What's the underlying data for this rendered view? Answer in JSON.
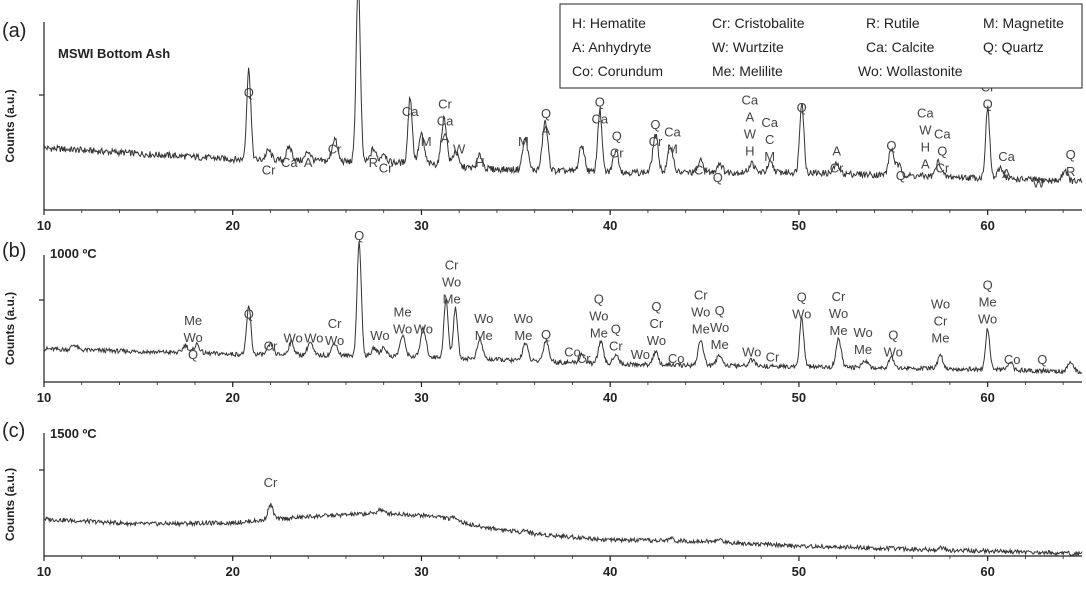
{
  "chart_data": [
    {
      "type": "line",
      "panel": "(a)",
      "title": "MSWI Bottom Ash",
      "xlabel": "",
      "ylabel": "Counts (a.u.)",
      "xlim": [
        10,
        65
      ],
      "xticks": [
        10,
        20,
        30,
        40,
        50,
        60
      ],
      "legend": [
        "H: Hematite",
        "Cr: Cristobalite",
        "R: Rutile",
        "M: Magnetite",
        "A: Anhydryte",
        "W: Wurtzite",
        "Ca: Calcite",
        "Q: Quartz",
        "Co:  Corundum",
        "Me: Melilite",
        "Wo: Wollastonite"
      ],
      "legend_position": "top-right",
      "baseline": [
        [
          10,
          0.33
        ],
        [
          20,
          0.27
        ],
        [
          25,
          0.26
        ],
        [
          30,
          0.25
        ],
        [
          33,
          0.22
        ],
        [
          40,
          0.2
        ],
        [
          50,
          0.2
        ],
        [
          60,
          0.17
        ],
        [
          65,
          0.15
        ]
      ],
      "peaks": [
        [
          20.85,
          0.48
        ],
        [
          21.9,
          0.05
        ],
        [
          23.0,
          0.07
        ],
        [
          24.0,
          0.05
        ],
        [
          25.4,
          0.12
        ],
        [
          26.65,
          0.96
        ],
        [
          27.45,
          0.07
        ],
        [
          28.0,
          0.05
        ],
        [
          29.4,
          0.35
        ],
        [
          30.0,
          0.15
        ],
        [
          31.2,
          0.25
        ],
        [
          31.8,
          0.08
        ],
        [
          33.1,
          0.07
        ],
        [
          35.5,
          0.17
        ],
        [
          36.55,
          0.26
        ],
        [
          38.5,
          0.14
        ],
        [
          39.45,
          0.33
        ],
        [
          40.3,
          0.12
        ],
        [
          42.4,
          0.2
        ],
        [
          43.2,
          0.14
        ],
        [
          44.8,
          0.06
        ],
        [
          45.8,
          0.05
        ],
        [
          47.5,
          0.05
        ],
        [
          48.5,
          0.05
        ],
        [
          50.15,
          0.38
        ],
        [
          52.0,
          0.05
        ],
        [
          54.9,
          0.14
        ],
        [
          55.3,
          0.05
        ],
        [
          57.4,
          0.08
        ],
        [
          60.0,
          0.37
        ],
        [
          60.7,
          0.06
        ],
        [
          64.1,
          0.06
        ]
      ],
      "annotations": [
        {
          "x": 20.85,
          "y": 0.6,
          "labels": [
            "Q"
          ]
        },
        {
          "x": 21.9,
          "y": 0.19,
          "labels": [
            "Cr"
          ]
        },
        {
          "x": 23.0,
          "y": 0.23,
          "labels": [
            "Ca"
          ]
        },
        {
          "x": 24.0,
          "y": 0.23,
          "labels": [
            "A"
          ]
        },
        {
          "x": 25.4,
          "y": 0.3,
          "labels": [
            "Cr"
          ]
        },
        {
          "x": 26.65,
          "y": 1.24,
          "labels": [
            "Q"
          ]
        },
        {
          "x": 27.45,
          "y": 0.23,
          "labels": [
            "R"
          ]
        },
        {
          "x": 28.1,
          "y": 0.2,
          "labels": [
            "Cr"
          ]
        },
        {
          "x": 29.4,
          "y": 0.5,
          "labels": [
            "Ca"
          ]
        },
        {
          "x": 30.25,
          "y": 0.34,
          "labels": [
            "M"
          ]
        },
        {
          "x": 31.25,
          "y": 0.36,
          "labels": [
            "Cr",
            "Ca",
            "A"
          ]
        },
        {
          "x": 32.0,
          "y": 0.3,
          "labels": [
            "W"
          ]
        },
        {
          "x": 33.1,
          "y": 0.23,
          "labels": [
            "H"
          ]
        },
        {
          "x": 35.4,
          "y": 0.34,
          "labels": [
            "M"
          ]
        },
        {
          "x": 36.6,
          "y": 0.4,
          "labels": [
            "Q",
            "A"
          ]
        },
        {
          "x": 39.45,
          "y": 0.46,
          "labels": [
            "Q",
            "Ca"
          ]
        },
        {
          "x": 40.35,
          "y": 0.28,
          "labels": [
            "Q",
            "Cr"
          ]
        },
        {
          "x": 42.4,
          "y": 0.34,
          "labels": [
            "Q",
            "Cr"
          ]
        },
        {
          "x": 43.3,
          "y": 0.3,
          "labels": [
            "Ca",
            "M"
          ]
        },
        {
          "x": 44.8,
          "y": 0.19,
          "labels": [
            "Cr"
          ]
        },
        {
          "x": 45.7,
          "y": 0.15,
          "labels": [
            "Q"
          ]
        },
        {
          "x": 47.4,
          "y": 0.29,
          "labels": [
            "Ca",
            "A",
            "W",
            "H"
          ]
        },
        {
          "x": 48.45,
          "y": 0.26,
          "labels": [
            "Ca",
            "C",
            "M"
          ]
        },
        {
          "x": 50.15,
          "y": 0.52,
          "labels": [
            "Q"
          ]
        },
        {
          "x": 52.0,
          "y": 0.2,
          "labels": [
            "A",
            "Cr"
          ]
        },
        {
          "x": 54.9,
          "y": 0.32,
          "labels": [
            "Q"
          ]
        },
        {
          "x": 55.4,
          "y": 0.16,
          "labels": [
            "Q"
          ]
        },
        {
          "x": 56.7,
          "y": 0.22,
          "labels": [
            "Ca",
            "W",
            "H",
            "A"
          ]
        },
        {
          "x": 57.6,
          "y": 0.2,
          "labels": [
            "Ca",
            "Q",
            "Cr"
          ]
        },
        {
          "x": 60.0,
          "y": 0.54,
          "labels": [
            "Cr",
            "Q"
          ]
        },
        {
          "x": 61.0,
          "y": 0.17,
          "labels": [
            "Ca",
            "A"
          ]
        },
        {
          "x": 62.7,
          "y": 0.12,
          "labels": [
            "W"
          ]
        },
        {
          "x": 64.4,
          "y": 0.18,
          "labels": [
            "Q",
            "R"
          ]
        }
      ]
    },
    {
      "type": "line",
      "panel": "(b)",
      "title": "1000 ºC",
      "xlabel": "",
      "ylabel": "Counts (a.u.)",
      "xlim": [
        10,
        65
      ],
      "xticks": [
        10,
        20,
        30,
        40,
        50,
        60
      ],
      "baseline": [
        [
          10,
          0.26
        ],
        [
          20,
          0.22
        ],
        [
          30,
          0.2
        ],
        [
          40,
          0.14
        ],
        [
          50,
          0.12
        ],
        [
          60,
          0.1
        ],
        [
          65,
          0.08
        ]
      ],
      "peaks": [
        [
          11.6,
          0.04
        ],
        [
          17.5,
          0.06
        ],
        [
          18.1,
          0.07
        ],
        [
          20.85,
          0.38
        ],
        [
          22.0,
          0.08
        ],
        [
          23.1,
          0.1
        ],
        [
          24.1,
          0.1
        ],
        [
          25.4,
          0.1
        ],
        [
          26.7,
          0.9
        ],
        [
          27.5,
          0.06
        ],
        [
          28.0,
          0.07
        ],
        [
          29.0,
          0.16
        ],
        [
          30.1,
          0.22
        ],
        [
          31.3,
          0.46
        ],
        [
          31.8,
          0.4
        ],
        [
          33.1,
          0.15
        ],
        [
          35.5,
          0.14
        ],
        [
          36.6,
          0.17
        ],
        [
          38.5,
          0.07
        ],
        [
          39.5,
          0.17
        ],
        [
          40.3,
          0.08
        ],
        [
          42.4,
          0.1
        ],
        [
          44.8,
          0.2
        ],
        [
          45.8,
          0.09
        ],
        [
          47.5,
          0.05
        ],
        [
          50.15,
          0.38
        ],
        [
          52.1,
          0.22
        ],
        [
          53.5,
          0.06
        ],
        [
          54.9,
          0.09
        ],
        [
          57.5,
          0.1
        ],
        [
          60.0,
          0.32
        ],
        [
          61.2,
          0.05
        ],
        [
          64.4,
          0.07
        ]
      ],
      "annotations": [
        {
          "x": 17.9,
          "y": 0.18,
          "labels": [
            "Me",
            "Wo",
            "Q"
          ]
        },
        {
          "x": 20.85,
          "y": 0.5,
          "labels": [
            "Q"
          ]
        },
        {
          "x": 22.0,
          "y": 0.25,
          "labels": [
            "Cr"
          ]
        },
        {
          "x": 23.2,
          "y": 0.31,
          "labels": [
            "Wo"
          ]
        },
        {
          "x": 24.3,
          "y": 0.31,
          "labels": [
            "Wo"
          ]
        },
        {
          "x": 25.4,
          "y": 0.29,
          "labels": [
            "Cr",
            "Wo"
          ]
        },
        {
          "x": 26.7,
          "y": 1.12,
          "labels": [
            "Q"
          ]
        },
        {
          "x": 27.8,
          "y": 0.33,
          "labels": [
            "Wo"
          ]
        },
        {
          "x": 29.0,
          "y": 0.38,
          "labels": [
            "Me",
            "Wo"
          ]
        },
        {
          "x": 30.1,
          "y": 0.38,
          "labels": [
            "Wo"
          ]
        },
        {
          "x": 31.6,
          "y": 0.62,
          "labels": [
            "Cr",
            "Wo",
            "Me"
          ]
        },
        {
          "x": 33.3,
          "y": 0.33,
          "labels": [
            "Wo",
            "Me"
          ]
        },
        {
          "x": 35.4,
          "y": 0.33,
          "labels": [
            "Wo",
            "Me"
          ]
        },
        {
          "x": 36.6,
          "y": 0.34,
          "labels": [
            "Q"
          ]
        },
        {
          "x": 38.0,
          "y": 0.2,
          "labels": [
            "Co"
          ]
        },
        {
          "x": 38.6,
          "y": 0.15,
          "labels": [
            "Cr"
          ]
        },
        {
          "x": 39.4,
          "y": 0.35,
          "labels": [
            "Q",
            "Wo",
            "Me"
          ]
        },
        {
          "x": 40.3,
          "y": 0.25,
          "labels": [
            "Q",
            "Cr"
          ]
        },
        {
          "x": 41.6,
          "y": 0.18,
          "labels": [
            "Wo"
          ]
        },
        {
          "x": 42.45,
          "y": 0.29,
          "labels": [
            "Q",
            "Cr",
            "Wo"
          ]
        },
        {
          "x": 43.5,
          "y": 0.15,
          "labels": [
            "Co"
          ]
        },
        {
          "x": 44.8,
          "y": 0.38,
          "labels": [
            "Cr",
            "Wo",
            "Me"
          ]
        },
        {
          "x": 45.8,
          "y": 0.26,
          "labels": [
            "Q",
            "Wo",
            "Me"
          ]
        },
        {
          "x": 47.5,
          "y": 0.2,
          "labels": [
            "Wo"
          ]
        },
        {
          "x": 48.6,
          "y": 0.16,
          "labels": [
            "Cr"
          ]
        },
        {
          "x": 50.15,
          "y": 0.5,
          "labels": [
            "Q",
            "Wo"
          ]
        },
        {
          "x": 52.1,
          "y": 0.37,
          "labels": [
            "Cr",
            "Wo",
            "Me"
          ]
        },
        {
          "x": 53.4,
          "y": 0.22,
          "labels": [
            "Wo",
            "Me"
          ]
        },
        {
          "x": 55.0,
          "y": 0.2,
          "labels": [
            "Q",
            "Wo"
          ]
        },
        {
          "x": 57.5,
          "y": 0.31,
          "labels": [
            "Wo",
            "Cr",
            "Me"
          ]
        },
        {
          "x": 60.0,
          "y": 0.46,
          "labels": [
            "Q",
            "Me",
            "Wo"
          ]
        },
        {
          "x": 61.3,
          "y": 0.14,
          "labels": [
            "Co"
          ]
        },
        {
          "x": 62.9,
          "y": 0.14,
          "labels": [
            "Q"
          ]
        }
      ]
    },
    {
      "type": "line",
      "panel": "(c)",
      "title": "1500 ºC",
      "xlabel": "",
      "ylabel": "Counts (a.u.)",
      "xlim": [
        10,
        65
      ],
      "xticks": [
        10,
        20,
        30,
        40,
        50,
        60
      ],
      "baseline": [
        [
          10,
          0.3
        ],
        [
          15,
          0.26
        ],
        [
          20,
          0.27
        ],
        [
          24,
          0.32
        ],
        [
          28,
          0.35
        ],
        [
          31,
          0.32
        ],
        [
          33,
          0.24
        ],
        [
          36,
          0.18
        ],
        [
          40,
          0.13
        ],
        [
          45,
          0.12
        ],
        [
          50,
          0.08
        ],
        [
          55,
          0.06
        ],
        [
          60,
          0.04
        ],
        [
          65,
          0.02
        ]
      ],
      "peaks": [
        [
          22.0,
          0.12
        ],
        [
          27.8,
          0.03
        ],
        [
          31.8,
          0.03
        ],
        [
          35.5,
          0.02
        ],
        [
          43.2,
          0.02
        ],
        [
          45.8,
          0.02
        ],
        [
          57.5,
          0.02
        ]
      ],
      "annotations": [
        {
          "x": 22.0,
          "y": 0.56,
          "labels": [
            "Cr"
          ]
        }
      ]
    }
  ]
}
